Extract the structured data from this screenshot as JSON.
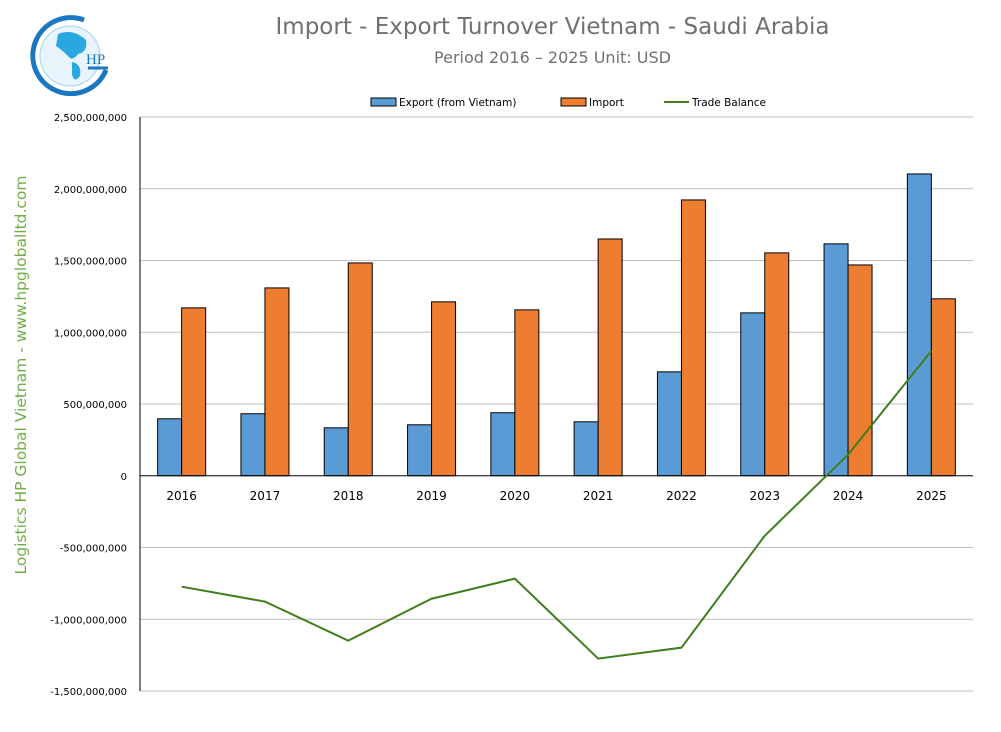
{
  "logo_text": "HP",
  "watermark": "Logistics HP Global Vietnam - www.hpgloballtd.com",
  "chart_data": {
    "type": "bar",
    "title": "Import - Export Turnover Vietnam - Saudi Arabia",
    "subtitle": "Period 2016 – 2025  Unit: USD",
    "categories": [
      "2016",
      "2017",
      "2018",
      "2019",
      "2020",
      "2021",
      "2022",
      "2023",
      "2024",
      "2025"
    ],
    "series": [
      {
        "name": "Export (from Vietnam)",
        "type": "bar",
        "color": "#5b9bd5",
        "values": [
          397000000,
          432000000,
          334000000,
          355000000,
          439000000,
          376000000,
          724000000,
          1135000000,
          1616000000,
          2103000000
        ]
      },
      {
        "name": "Import",
        "type": "bar",
        "color": "#ed7d31",
        "values": [
          1170000000,
          1309000000,
          1483000000,
          1212000000,
          1156000000,
          1650000000,
          1922000000,
          1553000000,
          1469000000,
          1233000000
        ]
      },
      {
        "name": "Trade Balance",
        "type": "line",
        "color": "#3f7f1f",
        "values": [
          -773000000,
          -877000000,
          -1149000000,
          -857000000,
          -717000000,
          -1274000000,
          -1198000000,
          -418000000,
          147000000,
          870000000
        ]
      }
    ],
    "ylim": [
      -1500000000,
      2500000000
    ],
    "yticks": [
      "2,500,000,000",
      "2,000,000,000",
      "1,500,000,000",
      "1,000,000,000",
      "500,000,000",
      "0",
      "-500,000,000",
      "-1,000,000,000",
      "-1,500,000,000"
    ],
    "ytick_values": [
      2500000000,
      2000000000,
      1500000000,
      1000000000,
      500000000,
      0,
      -500000000,
      -1000000000,
      -1500000000
    ],
    "grid": true,
    "legend_position": "top"
  }
}
